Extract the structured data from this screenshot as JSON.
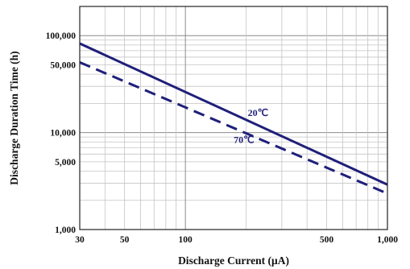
{
  "chart_data": {
    "type": "line",
    "title": "",
    "xlabel": "Discharge Current (μA)",
    "ylabel": "Discharge Duration Time (h)",
    "x_scale": "log",
    "y_scale": "log",
    "xlim": [
      30,
      1000
    ],
    "ylim": [
      1000,
      200000
    ],
    "grid": true,
    "x_ticks": [
      {
        "value": 30,
        "label": "30"
      },
      {
        "value": 50,
        "label": "50"
      },
      {
        "value": 100,
        "label": "100"
      },
      {
        "value": 500,
        "label": "500"
      },
      {
        "value": 1000,
        "label": "1,000"
      }
    ],
    "y_ticks": [
      {
        "value": 1000,
        "label": "1,000"
      },
      {
        "value": 5000,
        "label": "5,000"
      },
      {
        "value": 10000,
        "label": "10,000"
      },
      {
        "value": 50000,
        "label": "50,000"
      },
      {
        "value": 100000,
        "label": "100,000"
      }
    ],
    "series": [
      {
        "name": "20℃",
        "style": "solid",
        "color": "#1f1f7a",
        "x": [
          30,
          1000
        ],
        "y": [
          83000,
          2900
        ]
      },
      {
        "name": "70℃",
        "style": "dashed",
        "color": "#1f1f7a",
        "x": [
          30,
          1000
        ],
        "y": [
          53000,
          2350
        ]
      }
    ]
  }
}
